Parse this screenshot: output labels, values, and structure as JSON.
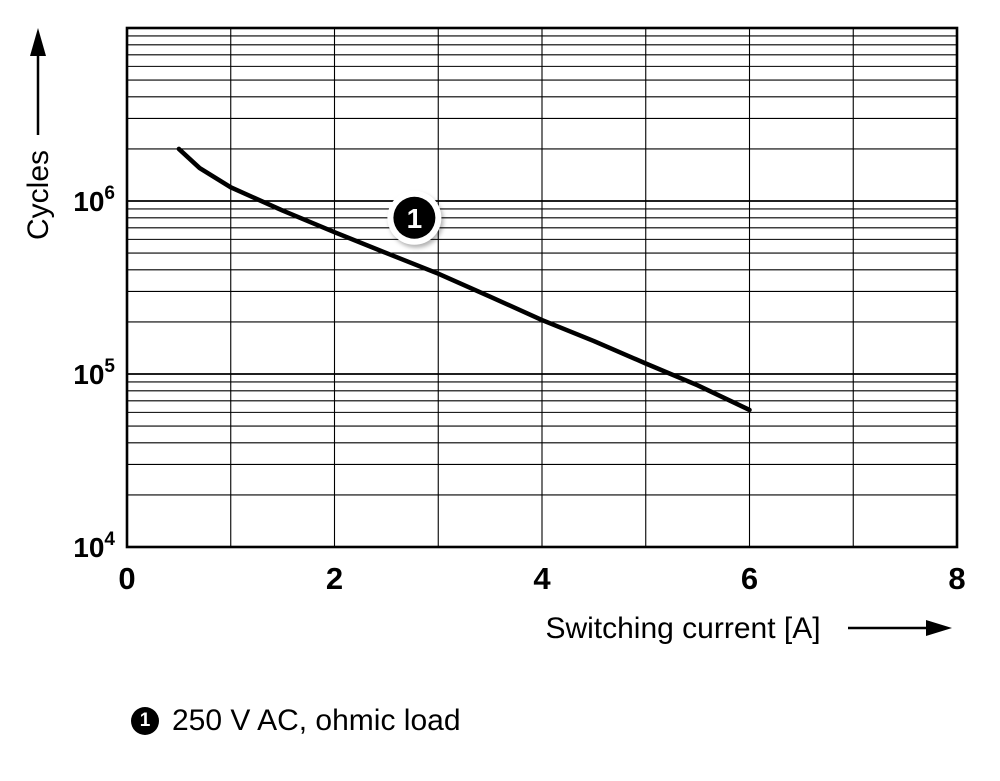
{
  "chart_data": {
    "type": "line",
    "title": "",
    "xlabel": "Switching current [A]",
    "ylabel": "Cycles",
    "xlim": [
      0,
      8
    ],
    "ylim": [
      10000,
      10000000
    ],
    "yscale": "log",
    "grid": true,
    "x_minor_step": 1,
    "x_ticks": [
      {
        "label": "0",
        "value": 0
      },
      {
        "label": "2",
        "value": 2
      },
      {
        "label": "4",
        "value": 4
      },
      {
        "label": "6",
        "value": 6
      },
      {
        "label": "8",
        "value": 8
      }
    ],
    "y_ticks": [
      {
        "base": "10",
        "exp": "4",
        "value": 10000
      },
      {
        "base": "10",
        "exp": "5",
        "value": 100000
      },
      {
        "base": "10",
        "exp": "6",
        "value": 1000000
      }
    ],
    "series": [
      {
        "name": "250 V AC, ohmic load",
        "marker_label": "1",
        "x": [
          0.5,
          0.7,
          1,
          1.5,
          2,
          2.5,
          3,
          3.5,
          4,
          4.5,
          5,
          5.5,
          6
        ],
        "y": [
          2000000,
          1550000,
          1200000,
          880000,
          660000,
          500000,
          380000,
          280000,
          205000,
          155000,
          115000,
          86000,
          62000
        ]
      }
    ],
    "annotation": {
      "label": "1",
      "x": 2.77,
      "y": 800000
    },
    "colors": {
      "line": "#000000",
      "grid": "#000000",
      "background": "#ffffff"
    }
  },
  "legend": {
    "marker": "1",
    "label": "250 V AC, ohmic load"
  }
}
